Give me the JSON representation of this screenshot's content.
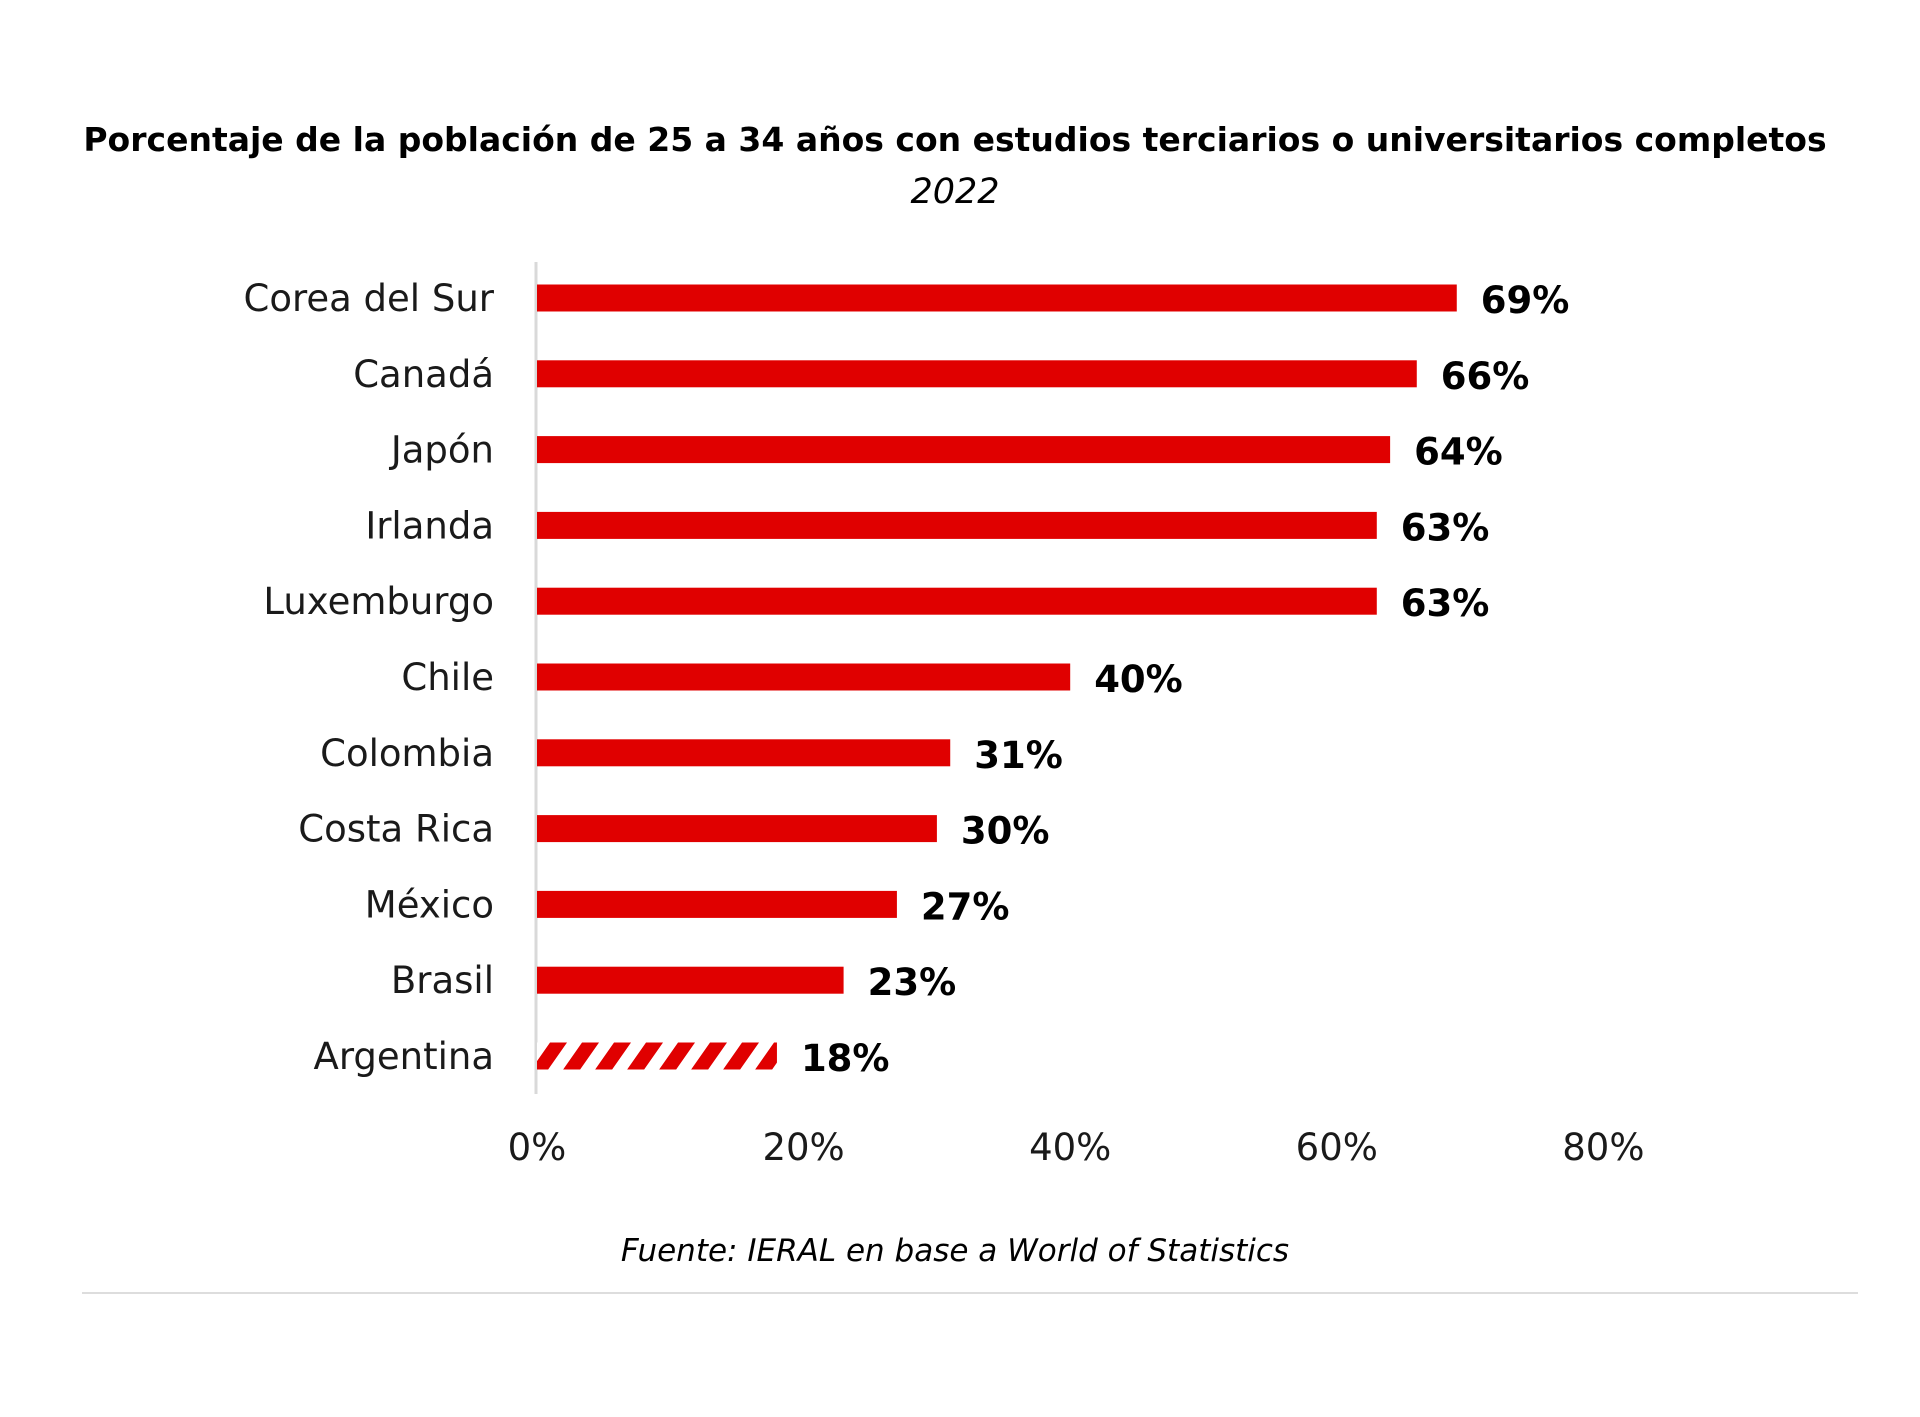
{
  "chart_data": {
    "type": "bar",
    "orientation": "horizontal",
    "title": "Porcentaje de la población de 25 a 34 años con estudios terciarios o universitarios completos",
    "subtitle": "2022",
    "categories": [
      "Corea del Sur",
      "Canadá",
      "Japón",
      "Irlanda",
      "Luxemburgo",
      "Chile",
      "Colombia",
      "Costa Rica",
      "México",
      "Brasil",
      "Argentina"
    ],
    "values": [
      69,
      66,
      64,
      63,
      63,
      40,
      31,
      30,
      27,
      23,
      18
    ],
    "value_labels": [
      "69%",
      "66%",
      "64%",
      "63%",
      "63%",
      "40%",
      "31%",
      "30%",
      "27%",
      "23%",
      "18%"
    ],
    "highlighted_category": "Argentina",
    "xlim": [
      0,
      80
    ],
    "x_ticks": [
      0,
      20,
      40,
      60,
      80
    ],
    "x_tick_labels": [
      "0%",
      "20%",
      "40%",
      "60%",
      "80%"
    ],
    "xlabel": "",
    "ylabel": "",
    "grid": false,
    "legend": "none",
    "source": "Fuente: IERAL en base a World of Statistics"
  },
  "colors": {
    "bar": "#e00000",
    "axis": "#d9d9d9",
    "divider": "#dddddd"
  }
}
